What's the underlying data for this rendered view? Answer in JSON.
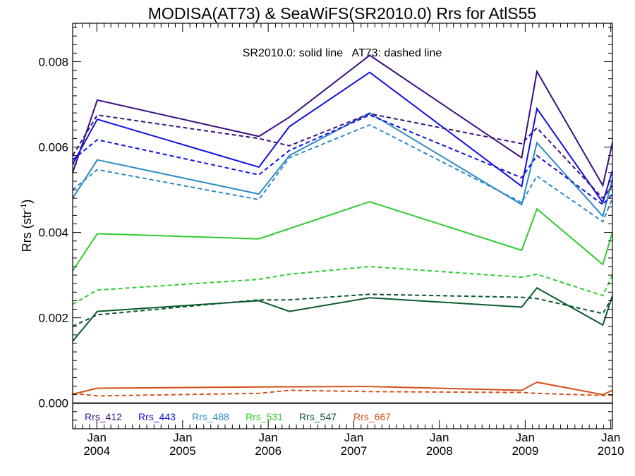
{
  "chart_data": {
    "type": "line",
    "title": "MODISA(AT73) & SeaWiFS(SR2010.0)  Rrs for AtlS55",
    "annotation": "SR2010.0: solid line   AT73: dashed line",
    "ylabel_main": "Rrs (str",
    "ylabel_sup": "-1",
    "ylabel_close": ")",
    "xlabel": "",
    "ylim": [
      -0.0006,
      0.0089
    ],
    "xlim": [
      "2003-09-20",
      "2010-01-08"
    ],
    "grid": false,
    "zero_line": true,
    "yticks": [
      {
        "value": 0.0,
        "label": "0.000"
      },
      {
        "value": 0.002,
        "label": "0.002"
      },
      {
        "value": 0.004,
        "label": "0.004"
      },
      {
        "value": 0.006,
        "label": "0.006"
      },
      {
        "value": 0.008,
        "label": "0.008"
      }
    ],
    "xticks": [
      {
        "date": "2004-01-01",
        "month": "Jan",
        "year": "2004"
      },
      {
        "date": "2005-01-01",
        "month": "Jan",
        "year": "2005"
      },
      {
        "date": "2006-01-01",
        "month": "Jan",
        "year": "2006"
      },
      {
        "date": "2007-01-01",
        "month": "Jan",
        "year": "2007"
      },
      {
        "date": "2008-01-01",
        "month": "Jan",
        "year": "2008"
      },
      {
        "date": "2009-01-01",
        "month": "Jan",
        "year": "2009"
      },
      {
        "date": "2010-01-01",
        "month": "Jan",
        "year": "2010"
      }
    ],
    "legend_position": "bottom-left",
    "series": [
      {
        "name": "Rrs_412",
        "color": "#3a0f80",
        "style": "solid",
        "points": [
          [
            "2003-09-20",
            0.0054
          ],
          [
            "2004-01-03",
            0.0071
          ],
          [
            "2005-11-22",
            0.00625
          ],
          [
            "2006-04-01",
            0.0067
          ],
          [
            "2007-03-10",
            0.00815
          ],
          [
            "2008-12-17",
            0.00575
          ],
          [
            "2009-02-20",
            0.00777
          ],
          [
            "2009-11-28",
            0.0051
          ],
          [
            "2010-01-08",
            0.0061
          ]
        ]
      },
      {
        "name": "Rrs_443",
        "color": "#1010e0",
        "style": "solid",
        "points": [
          [
            "2003-09-20",
            0.0056
          ],
          [
            "2004-01-03",
            0.00665
          ],
          [
            "2005-11-22",
            0.00553
          ],
          [
            "2006-04-01",
            0.00648
          ],
          [
            "2007-03-10",
            0.00775
          ],
          [
            "2008-12-17",
            0.00508
          ],
          [
            "2009-02-20",
            0.0069
          ],
          [
            "2009-11-28",
            0.0047
          ],
          [
            "2010-01-08",
            0.00545
          ]
        ]
      },
      {
        "name": "Rrs_488",
        "color": "#2c8ac4",
        "style": "solid",
        "points": [
          [
            "2003-09-20",
            0.0048
          ],
          [
            "2004-01-03",
            0.0057
          ],
          [
            "2005-11-22",
            0.0049
          ],
          [
            "2006-04-01",
            0.0058
          ],
          [
            "2007-03-10",
            0.0068
          ],
          [
            "2008-12-17",
            0.00465
          ],
          [
            "2009-02-20",
            0.0061
          ],
          [
            "2009-11-28",
            0.00438
          ],
          [
            "2010-01-08",
            0.00525
          ]
        ]
      },
      {
        "name": "Rrs_531",
        "color": "#2ecc2e",
        "style": "solid",
        "points": [
          [
            "2003-09-20",
            0.0031
          ],
          [
            "2004-01-03",
            0.00397
          ],
          [
            "2005-11-22",
            0.00385
          ],
          [
            "2007-03-10",
            0.00472
          ],
          [
            "2008-12-17",
            0.00358
          ],
          [
            "2009-02-20",
            0.00455
          ],
          [
            "2009-11-28",
            0.00325
          ],
          [
            "2010-01-08",
            0.004
          ]
        ]
      },
      {
        "name": "Rrs_547",
        "color": "#0b5a2e",
        "style": "solid",
        "points": [
          [
            "2003-09-20",
            0.00145
          ],
          [
            "2004-01-03",
            0.00215
          ],
          [
            "2005-11-22",
            0.0024
          ],
          [
            "2006-04-01",
            0.00215
          ],
          [
            "2007-03-10",
            0.00247
          ],
          [
            "2008-12-17",
            0.00225
          ],
          [
            "2009-02-20",
            0.0027
          ],
          [
            "2009-11-28",
            0.00183
          ],
          [
            "2010-01-08",
            0.00252
          ]
        ]
      },
      {
        "name": "Rrs_667",
        "color": "#d4501a",
        "style": "solid",
        "points": [
          [
            "2003-09-20",
            0.00021
          ],
          [
            "2004-01-03",
            0.00035
          ],
          [
            "2005-11-22",
            0.00038
          ],
          [
            "2007-03-10",
            0.00039
          ],
          [
            "2008-12-17",
            0.0003
          ],
          [
            "2009-02-20",
            0.00049
          ],
          [
            "2009-11-28",
            0.0002
          ],
          [
            "2010-01-08",
            0.0003
          ]
        ]
      },
      {
        "name": "Rrs_412",
        "color": "#3a0f80",
        "style": "dashed",
        "points": [
          [
            "2003-09-20",
            0.0058
          ],
          [
            "2004-01-03",
            0.00675
          ],
          [
            "2005-11-22",
            0.0062
          ],
          [
            "2006-04-01",
            0.00603
          ],
          [
            "2007-03-10",
            0.00678
          ],
          [
            "2008-12-17",
            0.00608
          ],
          [
            "2009-02-20",
            0.00645
          ],
          [
            "2009-11-28",
            0.0048
          ],
          [
            "2010-01-08",
            0.0051
          ]
        ]
      },
      {
        "name": "Rrs_443",
        "color": "#1010e0",
        "style": "dashed",
        "points": [
          [
            "2003-09-20",
            0.0057
          ],
          [
            "2004-01-03",
            0.00617
          ],
          [
            "2005-11-22",
            0.00535
          ],
          [
            "2006-04-01",
            0.00592
          ],
          [
            "2007-03-10",
            0.00675
          ],
          [
            "2008-12-17",
            0.00528
          ],
          [
            "2009-02-20",
            0.0058
          ],
          [
            "2009-11-28",
            0.00465
          ],
          [
            "2010-01-08",
            0.0049
          ]
        ]
      },
      {
        "name": "Rrs_488",
        "color": "#2c8ac4",
        "style": "dashed",
        "points": [
          [
            "2003-09-20",
            0.005
          ],
          [
            "2004-01-03",
            0.00547
          ],
          [
            "2005-11-22",
            0.00477
          ],
          [
            "2006-04-01",
            0.00575
          ],
          [
            "2007-03-10",
            0.00652
          ],
          [
            "2008-12-17",
            0.0047
          ],
          [
            "2009-02-20",
            0.00532
          ],
          [
            "2009-11-28",
            0.00425
          ],
          [
            "2010-01-08",
            0.0048
          ]
        ]
      },
      {
        "name": "Rrs_531",
        "color": "#2ecc2e",
        "style": "dashed",
        "points": [
          [
            "2003-09-20",
            0.00232
          ],
          [
            "2004-01-03",
            0.00265
          ],
          [
            "2005-11-22",
            0.0029
          ],
          [
            "2006-04-01",
            0.00302
          ],
          [
            "2007-03-10",
            0.0032
          ],
          [
            "2008-12-17",
            0.00295
          ],
          [
            "2009-02-20",
            0.00302
          ],
          [
            "2009-11-28",
            0.00252
          ],
          [
            "2010-01-08",
            0.003
          ]
        ]
      },
      {
        "name": "Rrs_547",
        "color": "#0b5a2e",
        "style": "dashed",
        "points": [
          [
            "2003-09-20",
            0.0018
          ],
          [
            "2004-01-03",
            0.00207
          ],
          [
            "2005-11-22",
            0.00242
          ],
          [
            "2006-04-01",
            0.00242
          ],
          [
            "2007-03-10",
            0.00255
          ],
          [
            "2008-12-17",
            0.00248
          ],
          [
            "2009-02-20",
            0.00245
          ],
          [
            "2009-11-28",
            0.0021
          ],
          [
            "2010-01-08",
            0.00248
          ]
        ]
      },
      {
        "name": "Rrs_667",
        "color": "#d4501a",
        "style": "dashed",
        "points": [
          [
            "2003-09-20",
            0.00023
          ],
          [
            "2004-01-03",
            0.00017
          ],
          [
            "2005-11-22",
            0.00023
          ],
          [
            "2006-04-01",
            0.0003
          ],
          [
            "2007-03-10",
            0.00027
          ],
          [
            "2008-12-17",
            0.00025
          ],
          [
            "2009-02-20",
            0.00023
          ],
          [
            "2009-11-28",
            0.00018
          ],
          [
            "2010-01-08",
            0.00019
          ]
        ]
      }
    ],
    "legend": [
      {
        "label": "Rrs_412",
        "color": "#3a0f80"
      },
      {
        "label": "Rrs_443",
        "color": "#1010e0"
      },
      {
        "label": "Rrs_488",
        "color": "#2c8ac4"
      },
      {
        "label": "Rrs_531",
        "color": "#2ecc2e"
      },
      {
        "label": "Rrs_547",
        "color": "#0b5a2e"
      },
      {
        "label": "Rrs_667",
        "color": "#d4501a"
      }
    ]
  }
}
